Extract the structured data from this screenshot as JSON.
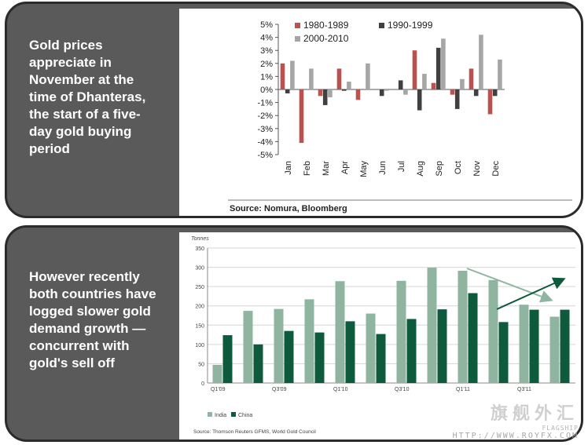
{
  "panel1": {
    "caption": "Gold prices appreciate in November at the time of Dhanteras, the start of a five-day gold buying period",
    "source": "Source: Nomura, Bloomberg"
  },
  "panel2": {
    "caption": "However recently both countries have logged slower gold demand growth — concurrent with gold's sell off",
    "source": "Source: Thomson Reuters GFMS, World Gold Council"
  },
  "watermark": {
    "text": "旗舰外汇",
    "sub": "FLAGSHIP",
    "url": "HTTP://WWW.ROYFX.COM"
  },
  "chart_data": [
    {
      "type": "bar",
      "title": "",
      "xlabel": "",
      "ylabel": "",
      "categories": [
        "Jan",
        "Feb",
        "Mar",
        "Apr",
        "May",
        "Jun",
        "Jul",
        "Aug",
        "Sep",
        "Oct",
        "Nov",
        "Dec"
      ],
      "y_ticks": [
        "5%",
        "4%",
        "3%",
        "2%",
        "1%",
        "0%",
        "-1%",
        "-2%",
        "-3%",
        "-4%",
        "-5%"
      ],
      "ylim": [
        -5,
        5
      ],
      "legend": "top",
      "grid": false,
      "series": [
        {
          "name": "1980-1989",
          "color": "#c0504d",
          "values": [
            2.0,
            -4.1,
            -0.5,
            1.6,
            -0.8,
            0.0,
            0.0,
            3.0,
            0.5,
            -0.4,
            1.6,
            -1.9
          ]
        },
        {
          "name": "1990-1999",
          "color": "#404040",
          "values": [
            -0.3,
            0.0,
            -1.2,
            -0.1,
            0.0,
            -0.5,
            0.7,
            -1.6,
            3.2,
            -1.5,
            -0.5,
            -0.5
          ]
        },
        {
          "name": "2000-2010",
          "color": "#a6a6a6",
          "values": [
            2.2,
            1.6,
            -0.6,
            0.6,
            2.0,
            -0.1,
            -0.4,
            1.2,
            3.9,
            0.8,
            4.2,
            2.3
          ]
        }
      ]
    },
    {
      "type": "bar",
      "title": "",
      "ylabel": "Tonnes",
      "xlabel": "",
      "categories": [
        "Q1'09",
        "Q2'09",
        "Q3'09",
        "Q4'09",
        "Q1'10",
        "Q2'10",
        "Q3'10",
        "Q4'10",
        "Q1'11",
        "Q2'11",
        "Q3'11",
        "Q4'11"
      ],
      "x_tick_labels": [
        "Q1'09",
        "",
        "Q3'09",
        "",
        "Q1'10",
        "",
        "Q3'10",
        "",
        "Q1'11",
        "",
        "Q3'11",
        ""
      ],
      "y_ticks": [
        0,
        50,
        100,
        150,
        200,
        250,
        300,
        350
      ],
      "ylim": [
        0,
        350
      ],
      "legend": "bottom-left",
      "grid": true,
      "series": [
        {
          "name": "India",
          "color": "#8fb5a1",
          "values": [
            47,
            187,
            192,
            217,
            264,
            180,
            265,
            299,
            291,
            267,
            203,
            172
          ]
        },
        {
          "name": "China",
          "color": "#0e5a3c",
          "values": [
            124,
            100,
            135,
            131,
            160,
            127,
            166,
            191,
            233,
            158,
            190,
            190
          ]
        }
      ]
    }
  ]
}
